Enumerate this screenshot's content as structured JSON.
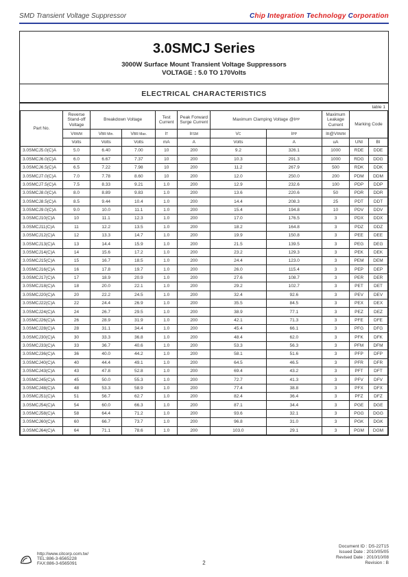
{
  "header": {
    "left": "SMD Transient Voltage Suppressor",
    "right_parts": [
      {
        "t": "C",
        "c": "#1b2f9a"
      },
      {
        "t": "hip ",
        "c": "#d22"
      },
      {
        "t": "I",
        "c": "#1b2f9a"
      },
      {
        "t": "ntegration ",
        "c": "#d22"
      },
      {
        "t": "T",
        "c": "#1b2f9a"
      },
      {
        "t": "echnology ",
        "c": "#d22"
      },
      {
        "t": "C",
        "c": "#1b2f9a"
      },
      {
        "t": "orporation",
        "c": "#d22"
      }
    ]
  },
  "title": {
    "series": "3.0SMCJ Series",
    "sub1": "3000W Surface Mount Transient Voltage Suppressors",
    "sub2": "VOLTAGE : 5.0 TO 170Volts"
  },
  "section": "ELECTRICAL CHARACTERISTICS",
  "table_label": "table 1",
  "headers": {
    "part": "Part No.",
    "rso": "Reverse Stand-off Voltage",
    "bdv": "Breakdown Voltage",
    "test": "Test Current",
    "peak": "Peak Forward Surge Current",
    "clamp": "Maximum Clamping Voltage @I",
    "clamp_sub": "PP",
    "leak": "Maximum Leakage Current",
    "mark": "Marking Code",
    "sym": {
      "vrwm": "V",
      "vrwm_s": "RWM",
      "vbrmin": "V",
      "vbrmin_s": "BR Min.",
      "vbrmax": "V",
      "vbrmax_s": "BR Max.",
      "it": "I",
      "it_s": "T",
      "ifsm": "I",
      "ifsm_s": "FSM",
      "vc": "V",
      "vc_s": "C",
      "ipp": "I",
      "ipp_s": "PP",
      "ir": "I",
      "ir_pre": "R",
      "ir_at": "@V",
      "ir_s": "RWM",
      "uni": "UNI",
      "bi": "BI"
    },
    "units": {
      "v": "Volts",
      "ma": "mA",
      "a": "A",
      "ua": "uA"
    }
  },
  "rows": [
    [
      "3.0SMCJ5.0(C)A",
      "5.0",
      "6.40",
      "7.00",
      "10",
      "200",
      "9.2",
      "326.1",
      "1000",
      "RDE",
      "DDE"
    ],
    [
      "3.0SMCJ6.0(C)A",
      "6.0",
      "6.67",
      "7.37",
      "10",
      "200",
      "10.3",
      "291.3",
      "1000",
      "RDG",
      "DDG"
    ],
    [
      "3.0SMCJ6.5(C)A",
      "6.5",
      "7.22",
      "7.98",
      "10",
      "200",
      "11.2",
      "267.9",
      "500",
      "RDK",
      "DDK"
    ],
    [
      "3.0SMCJ7.0(C)A",
      "7.0",
      "7.78",
      "8.60",
      "10",
      "200",
      "12.0",
      "250.0",
      "200",
      "PDM",
      "DDM"
    ],
    [
      "3.0SMCJ7.5(C)A",
      "7.5",
      "8.33",
      "9.21",
      "1.0",
      "200",
      "12.9",
      "232.6",
      "100",
      "PDP",
      "DDP"
    ],
    [
      "3.0SMCJ8.0(C)A",
      "8.0",
      "8.89",
      "9.83",
      "1.0",
      "200",
      "13.6",
      "220.6",
      "50",
      "PDR",
      "DDR"
    ],
    [
      "3.0SMCJ8.5(C)A",
      "8.5",
      "9.44",
      "10.4",
      "1.0",
      "200",
      "14.4",
      "208.3",
      "25",
      "PDT",
      "DDT"
    ],
    [
      "3.0SMCJ9.0(C)A",
      "9.0",
      "10.0",
      "11.1",
      "1.0",
      "200",
      "15.4",
      "194.8",
      "10",
      "PDV",
      "DDV"
    ],
    [
      "3.0SMCJ10(C)A",
      "10",
      "11.1",
      "12.3",
      "1.0",
      "200",
      "17.0",
      "176.5",
      "3",
      "PDX",
      "DDX"
    ],
    [
      "3.0SMCJ11(C)A",
      "11",
      "12.2",
      "13.5",
      "1.0",
      "200",
      "18.2",
      "164.8",
      "3",
      "PDZ",
      "DDZ"
    ],
    [
      "3.0SMCJ12(C)A",
      "12",
      "13.3",
      "14.7",
      "1.0",
      "200",
      "19.9",
      "150.8",
      "3",
      "PEE",
      "DEE"
    ],
    [
      "3.0SMCJ13(C)A",
      "13",
      "14.4",
      "15.9",
      "1.0",
      "200",
      "21.5",
      "139.5",
      "3",
      "PEG",
      "DEG"
    ],
    [
      "3.0SMCJ14(C)A",
      "14",
      "15.6",
      "17.2",
      "1.0",
      "200",
      "23.2",
      "129.3",
      "3",
      "PEK",
      "DEK"
    ],
    [
      "3.0SMCJ15(C)A",
      "15",
      "16.7",
      "18.5",
      "1.0",
      "200",
      "24.4",
      "123.0",
      "3",
      "PEM",
      "DEM"
    ],
    [
      "3.0SMCJ16(C)A",
      "16",
      "17.8",
      "19.7",
      "1.0",
      "200",
      "26.0",
      "115.4",
      "3",
      "PEP",
      "DEP"
    ],
    [
      "3.0SMCJ17(C)A",
      "17",
      "18.9",
      "20.9",
      "1.0",
      "200",
      "27.6",
      "108.7",
      "3",
      "PER",
      "DER"
    ],
    [
      "3.0SMCJ18(C)A",
      "18",
      "20.0",
      "22.1",
      "1.0",
      "200",
      "29.2",
      "102.7",
      "3",
      "PET",
      "DET"
    ],
    [
      "3.0SMCJ20(C)A",
      "20",
      "22.2",
      "24.5",
      "1.0",
      "200",
      "32.4",
      "92.6",
      "3",
      "PEV",
      "DEV"
    ],
    [
      "3.0SMCJ22(C)A",
      "22",
      "24.4",
      "26.9",
      "1.0",
      "200",
      "35.5",
      "84.5",
      "3",
      "PEX",
      "DEX"
    ],
    [
      "3.0SMCJ24(C)A",
      "24",
      "26.7",
      "29.5",
      "1.0",
      "200",
      "38.9",
      "77.1",
      "3",
      "PEZ",
      "DEZ"
    ],
    [
      "3.0SMCJ26(C)A",
      "26",
      "28.9",
      "31.9",
      "1.0",
      "200",
      "42.1",
      "71.3",
      "3",
      "PFE",
      "DFE"
    ],
    [
      "3.0SMCJ28(C)A",
      "28",
      "31.1",
      "34.4",
      "1.0",
      "200",
      "45.4",
      "66.1",
      "3",
      "PFG",
      "DFG"
    ],
    [
      "3.0SMCJ30(C)A",
      "30",
      "33.3",
      "36.8",
      "1.0",
      "200",
      "48.4",
      "62.0",
      "3",
      "PFK",
      "DFK"
    ],
    [
      "3.0SMCJ33(C)A",
      "33",
      "36.7",
      "40.6",
      "1.0",
      "200",
      "53.3",
      "56.3",
      "3",
      "PFM",
      "DFM"
    ],
    [
      "3.0SMCJ36(C)A",
      "36",
      "40.0",
      "44.2",
      "1.0",
      "200",
      "58.1",
      "51.6",
      "3",
      "PFP",
      "DFP"
    ],
    [
      "3.0SMCJ40(C)A",
      "40",
      "44.4",
      "49.1",
      "1.0",
      "200",
      "64.5",
      "46.5",
      "3",
      "PFR",
      "DFR"
    ],
    [
      "3.0SMCJ43(C)A",
      "43",
      "47.8",
      "52.8",
      "1.0",
      "200",
      "69.4",
      "43.2",
      "3",
      "PFT",
      "DFT"
    ],
    [
      "3.0SMCJ45(C)A",
      "45",
      "50.0",
      "55.3",
      "1.0",
      "200",
      "72.7",
      "41.3",
      "3",
      "PFV",
      "DFV"
    ],
    [
      "3.0SMCJ48(C)A",
      "48",
      "53.3",
      "58.9",
      "1.0",
      "200",
      "77.4",
      "38.8",
      "3",
      "PFX",
      "DFX"
    ],
    [
      "3.0SMCJ51(C)A",
      "51",
      "56.7",
      "62.7",
      "1.0",
      "200",
      "82.4",
      "36.4",
      "3",
      "PFZ",
      "DFZ"
    ],
    [
      "3.0SMCJ54(C)A",
      "54",
      "60.0",
      "66.3",
      "1.0",
      "200",
      "87.1",
      "34.4",
      "3",
      "PGE",
      "DGE"
    ],
    [
      "3.0SMCJ58(C)A",
      "58",
      "64.4",
      "71.2",
      "1.0",
      "200",
      "93.6",
      "32.1",
      "3",
      "PGG",
      "DGG"
    ],
    [
      "3.0SMCJ60(C)A",
      "60",
      "66.7",
      "73.7",
      "1.0",
      "200",
      "96.8",
      "31.0",
      "3",
      "PGK",
      "DGK"
    ],
    [
      "3.0SMCJ64(C)A",
      "64",
      "71.1",
      "78.6",
      "1.0",
      "200",
      "103.0",
      "29.1",
      "3",
      "PGM",
      "DGM"
    ]
  ],
  "footer": {
    "url": "http://www.citcorp.com.tw/",
    "tel": "TEL:886-3-6565228",
    "fax": "FAX:886-3-6565091",
    "page": "2",
    "doc": "Document ID : DS-22T15",
    "issued": "Issued Date : 2010/05/05",
    "revised": "Revised Date : 2010/10/08",
    "rev": "Revision : B"
  }
}
